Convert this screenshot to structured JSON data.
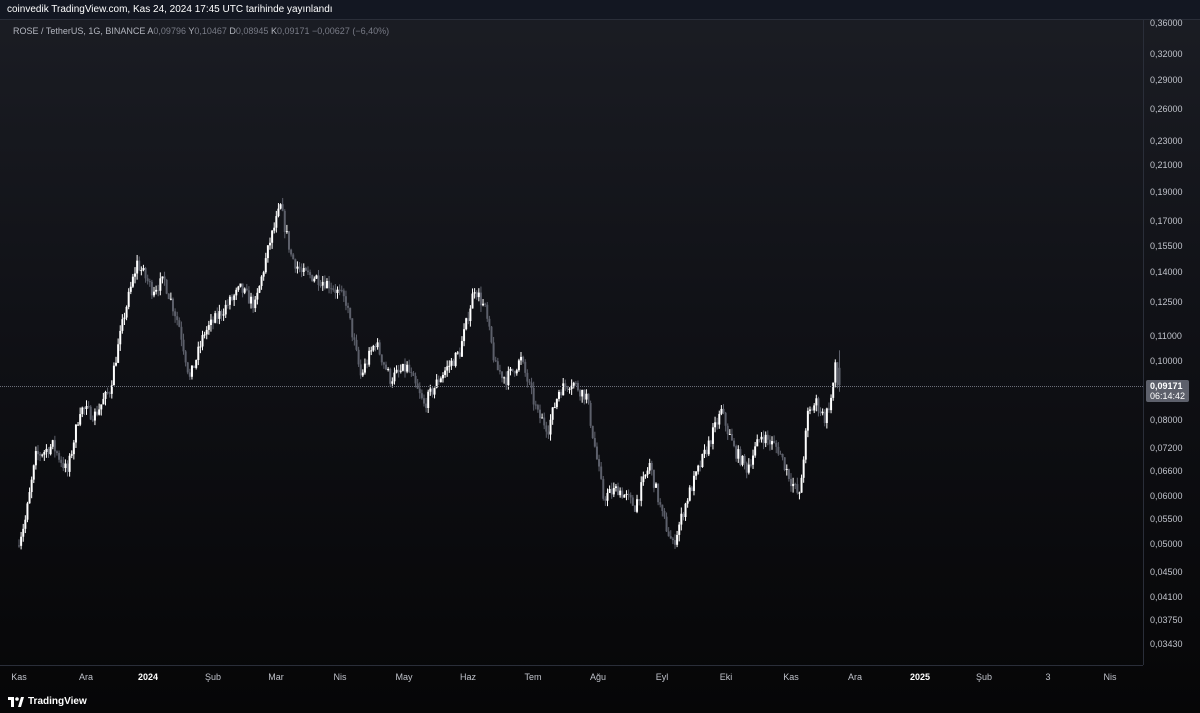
{
  "header": {
    "published_text": "coinvedik TradingView.com, Kas 24, 2024 17:45 UTC tarihinde yayınlandı"
  },
  "legend": {
    "symbol": "ROSE / TetherUS, 1G, BINANCE",
    "open_label": "A",
    "open": "0,09796",
    "high_label": "Y",
    "high": "0,10467",
    "low_label": "D",
    "low": "0,08945",
    "close_label": "K",
    "close": "0,09171",
    "change": "−0,00627 (−6,40%)"
  },
  "price_axis": {
    "ticks": [
      "0,36000",
      "0,32000",
      "0,29000",
      "0,26000",
      "0,23000",
      "0,21000",
      "0,19000",
      "0,17000",
      "0,15500",
      "0,14000",
      "0,12500",
      "0,11000",
      "0,10000",
      "0,08000",
      "0,07200",
      "0,06600",
      "0,06000",
      "0,05500",
      "0,05000",
      "0,04500",
      "0,04100",
      "0,03750",
      "0,03430"
    ],
    "current_price": "0,09171",
    "countdown": "06:14:42"
  },
  "time_axis": {
    "ticks": [
      {
        "label": "Kas",
        "year": false
      },
      {
        "label": "Ara",
        "year": false
      },
      {
        "label": "2024",
        "year": true
      },
      {
        "label": "Şub",
        "year": false
      },
      {
        "label": "Mar",
        "year": false
      },
      {
        "label": "Nis",
        "year": false
      },
      {
        "label": "May",
        "year": false
      },
      {
        "label": "Haz",
        "year": false
      },
      {
        "label": "Tem",
        "year": false
      },
      {
        "label": "Ağu",
        "year": false
      },
      {
        "label": "Eyl",
        "year": false
      },
      {
        "label": "Eki",
        "year": false
      },
      {
        "label": "Kas",
        "year": false
      },
      {
        "label": "Ara",
        "year": false
      },
      {
        "label": "2025",
        "year": true
      },
      {
        "label": "Şub",
        "year": false
      },
      {
        "label": "3",
        "year": false
      },
      {
        "label": "Nis",
        "year": false
      }
    ]
  },
  "footer": {
    "brand": "TradingView",
    "logo_icon": "tradingview-logo-icon"
  },
  "colors": {
    "candle_up": "#ffffff",
    "candle_down": "#5d606b",
    "header_bg": "#131722"
  },
  "chart_data": {
    "type": "candlestick",
    "symbol": "ROSE / TetherUS",
    "interval": "1D",
    "scale": "log",
    "ylim": [
      0.0343,
      0.36
    ],
    "x_range": [
      "2023-11-01",
      "2025-04-15"
    ],
    "anchors": [
      {
        "date": "2023-11-01",
        "price": 0.05
      },
      {
        "date": "2023-11-05",
        "price": 0.055
      },
      {
        "date": "2023-11-10",
        "price": 0.07
      },
      {
        "date": "2023-11-18",
        "price": 0.073
      },
      {
        "date": "2023-11-25",
        "price": 0.066
      },
      {
        "date": "2023-12-01",
        "price": 0.084
      },
      {
        "date": "2023-12-08",
        "price": 0.082
      },
      {
        "date": "2023-12-15",
        "price": 0.09
      },
      {
        "date": "2023-12-22",
        "price": 0.12
      },
      {
        "date": "2023-12-28",
        "price": 0.146
      },
      {
        "date": "2024-01-04",
        "price": 0.132
      },
      {
        "date": "2024-01-10",
        "price": 0.136
      },
      {
        "date": "2024-01-17",
        "price": 0.115
      },
      {
        "date": "2024-01-22",
        "price": 0.094
      },
      {
        "date": "2024-01-29",
        "price": 0.112
      },
      {
        "date": "2024-02-05",
        "price": 0.12
      },
      {
        "date": "2024-02-15",
        "price": 0.132
      },
      {
        "date": "2024-02-22",
        "price": 0.124
      },
      {
        "date": "2024-02-29",
        "price": 0.158
      },
      {
        "date": "2024-03-05",
        "price": 0.18
      },
      {
        "date": "2024-03-10",
        "price": 0.15
      },
      {
        "date": "2024-03-15",
        "price": 0.14
      },
      {
        "date": "2024-03-22",
        "price": 0.138
      },
      {
        "date": "2024-03-29",
        "price": 0.134
      },
      {
        "date": "2024-04-05",
        "price": 0.126
      },
      {
        "date": "2024-04-12",
        "price": 0.095
      },
      {
        "date": "2024-04-19",
        "price": 0.108
      },
      {
        "date": "2024-04-26",
        "price": 0.094
      },
      {
        "date": "2024-05-04",
        "price": 0.098
      },
      {
        "date": "2024-05-12",
        "price": 0.085
      },
      {
        "date": "2024-05-20",
        "price": 0.095
      },
      {
        "date": "2024-05-29",
        "price": 0.104
      },
      {
        "date": "2024-06-05",
        "price": 0.133
      },
      {
        "date": "2024-06-10",
        "price": 0.122
      },
      {
        "date": "2024-06-15",
        "price": 0.098
      },
      {
        "date": "2024-06-20",
        "price": 0.094
      },
      {
        "date": "2024-06-27",
        "price": 0.101
      },
      {
        "date": "2024-07-05",
        "price": 0.082
      },
      {
        "date": "2024-07-10",
        "price": 0.078
      },
      {
        "date": "2024-07-15",
        "price": 0.09
      },
      {
        "date": "2024-07-21",
        "price": 0.093
      },
      {
        "date": "2024-07-28",
        "price": 0.088
      },
      {
        "date": "2024-08-05",
        "price": 0.06
      },
      {
        "date": "2024-08-12",
        "price": 0.062
      },
      {
        "date": "2024-08-20",
        "price": 0.058
      },
      {
        "date": "2024-08-27",
        "price": 0.068
      },
      {
        "date": "2024-09-02",
        "price": 0.056
      },
      {
        "date": "2024-09-07",
        "price": 0.05
      },
      {
        "date": "2024-09-14",
        "price": 0.06
      },
      {
        "date": "2024-09-23",
        "price": 0.072
      },
      {
        "date": "2024-09-30",
        "price": 0.083
      },
      {
        "date": "2024-10-06",
        "price": 0.072
      },
      {
        "date": "2024-10-12",
        "price": 0.067
      },
      {
        "date": "2024-10-19",
        "price": 0.076
      },
      {
        "date": "2024-10-27",
        "price": 0.072
      },
      {
        "date": "2024-11-02",
        "price": 0.064
      },
      {
        "date": "2024-11-06",
        "price": 0.06
      },
      {
        "date": "2024-11-10",
        "price": 0.082
      },
      {
        "date": "2024-11-14",
        "price": 0.086
      },
      {
        "date": "2024-11-18",
        "price": 0.081
      },
      {
        "date": "2024-11-21",
        "price": 0.087
      },
      {
        "date": "2024-11-23",
        "price": 0.098
      },
      {
        "date": "2024-11-24",
        "price": 0.0917
      }
    ],
    "last_candle": {
      "date": "2024-11-24",
      "open": 0.09796,
      "high": 0.10467,
      "low": 0.08945,
      "close": 0.09171
    }
  }
}
